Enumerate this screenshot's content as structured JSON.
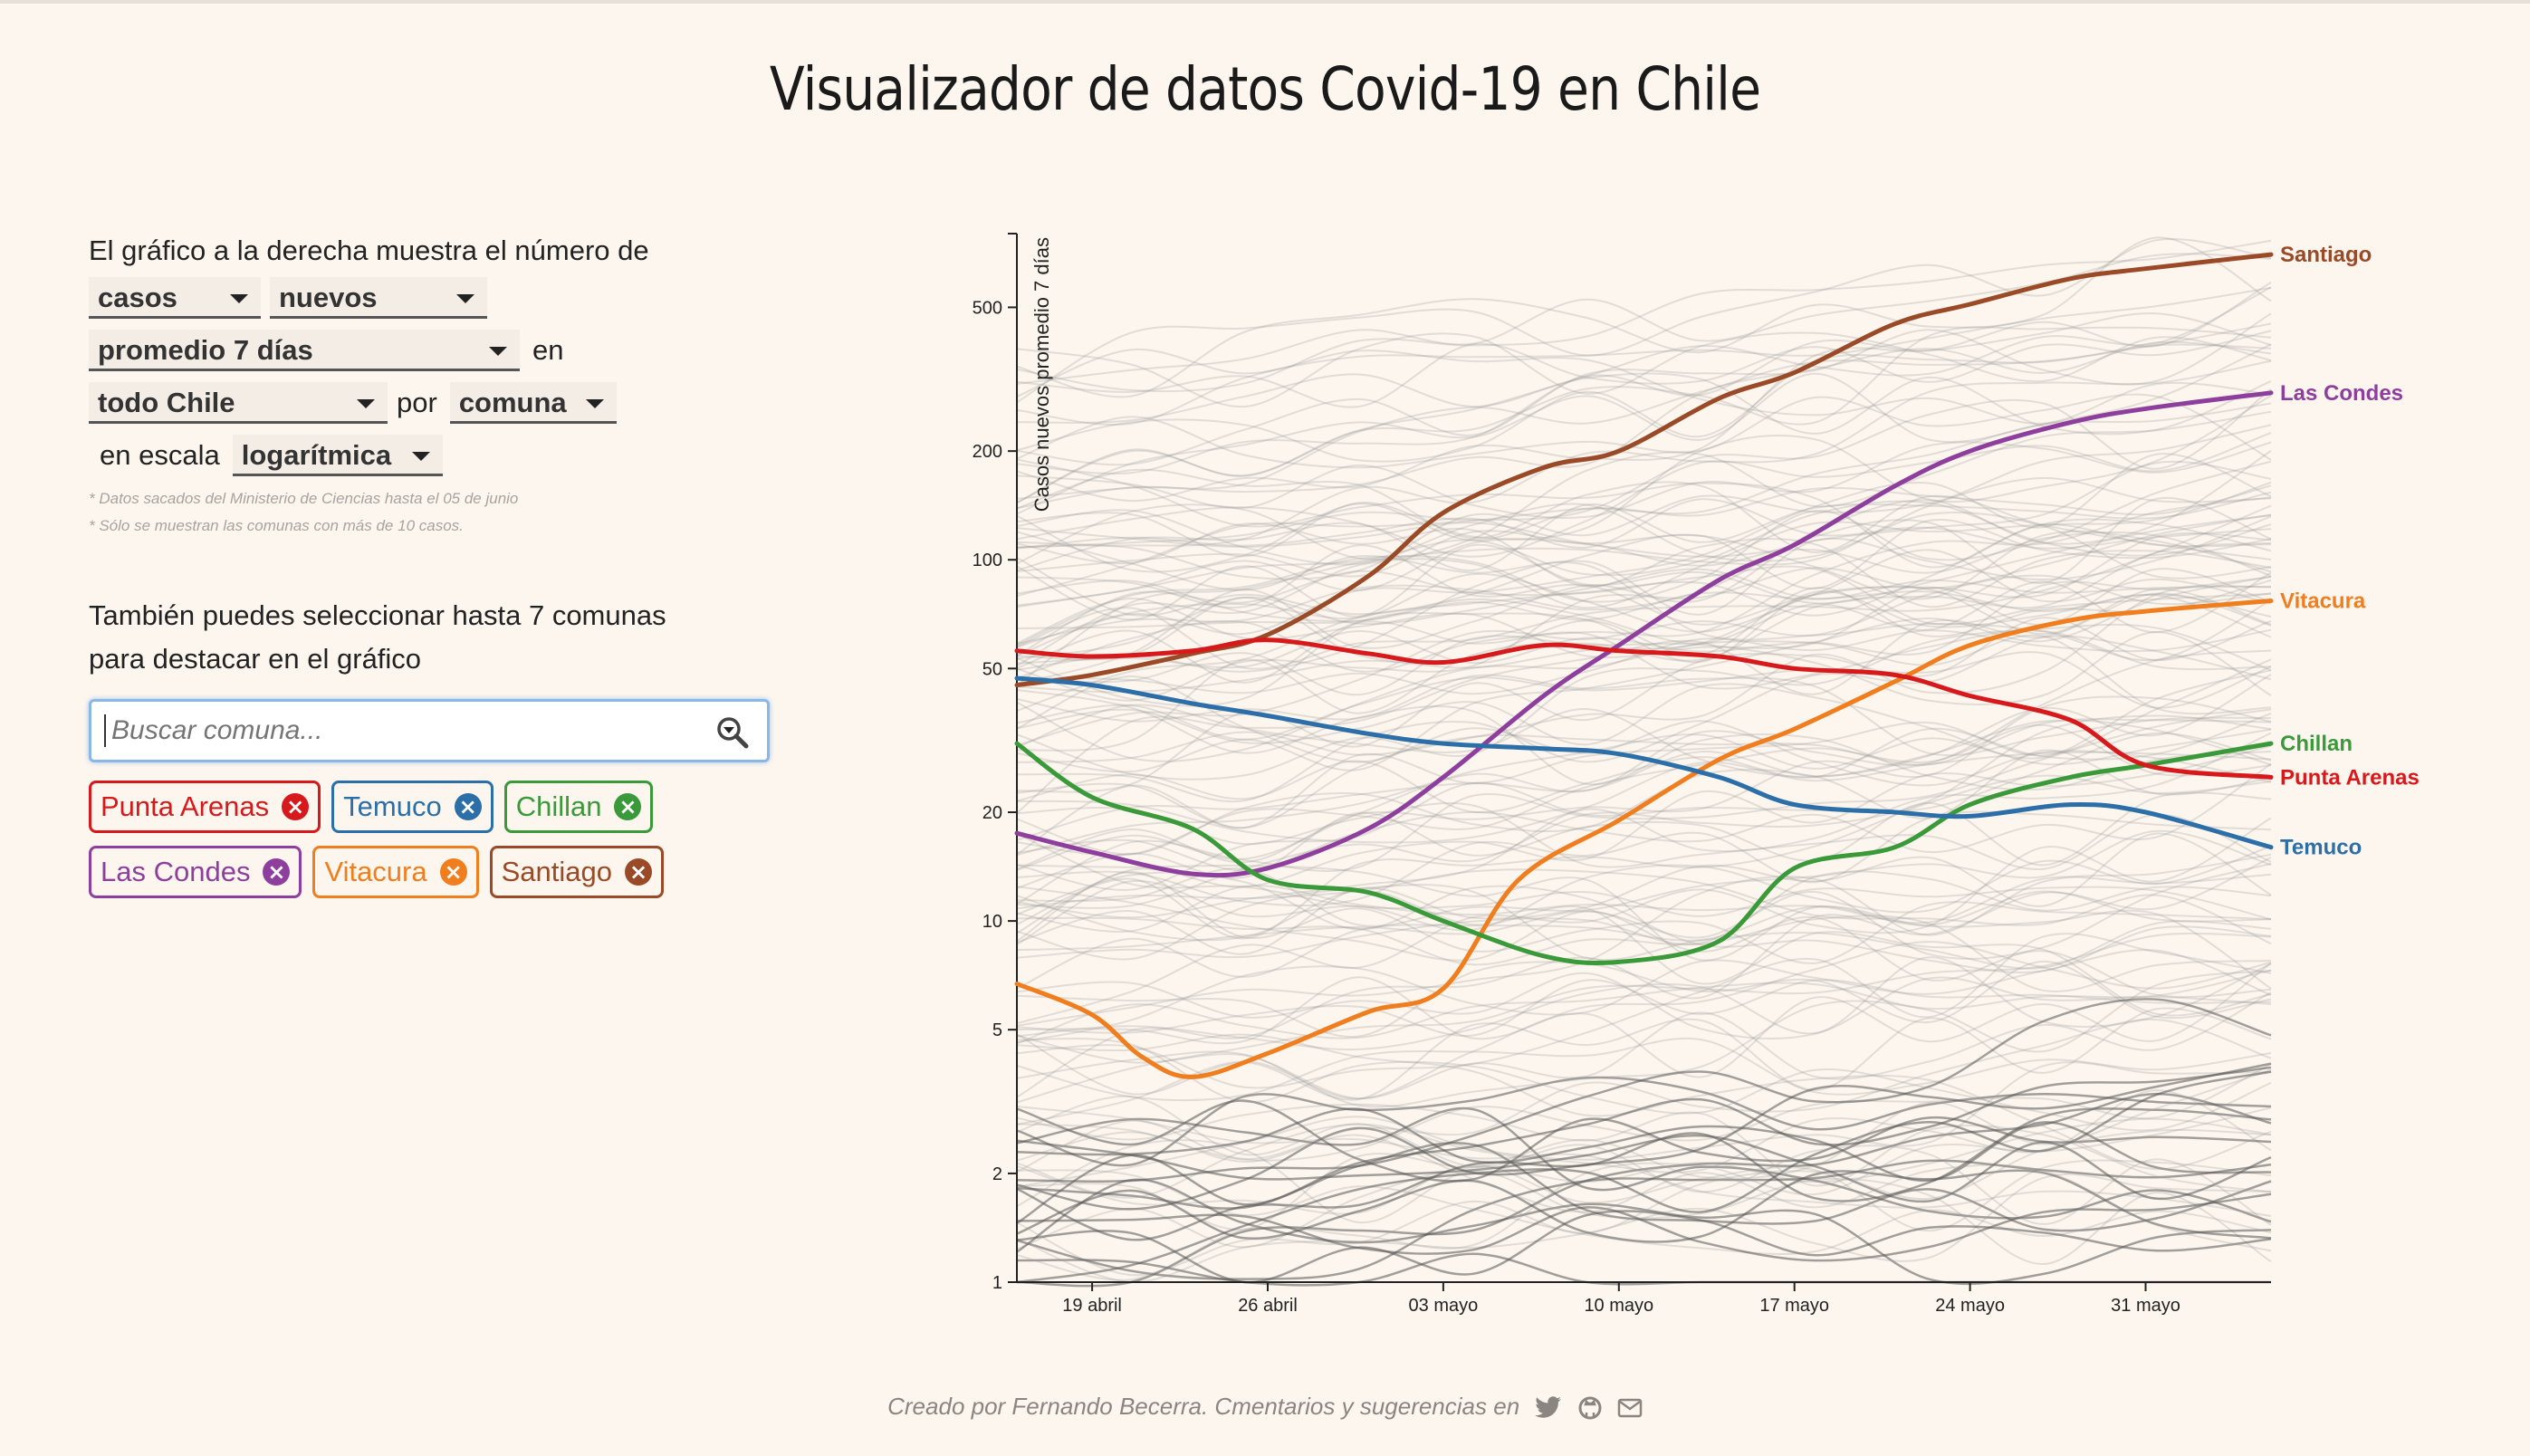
{
  "title": "Visualizador de datos Covid-19 en Chile",
  "controls": {
    "intro": "El gráfico a la derecha muestra el número de",
    "metric": "casos",
    "type": "nuevos",
    "smoothing": "promedio 7 días",
    "word_en": "en",
    "region": "todo Chile",
    "word_por": "por",
    "grouping": "comuna",
    "word_escala": "en escala",
    "scale": "logarítmica"
  },
  "notes": [
    "* Datos sacados del Ministerio de Ciencias hasta el 05 de junio",
    "* Sólo se muestran las comunas con más de 10 casos."
  ],
  "select_prompt_1": "También puedes seleccionar hasta 7 comunas",
  "select_prompt_2": "para destacar en el gráfico",
  "search": {
    "placeholder": "Buscar comuna..."
  },
  "chips": [
    {
      "label": "Punta Arenas",
      "color": "#d7191c"
    },
    {
      "label": "Temuco",
      "color": "#2c6fa8"
    },
    {
      "label": "Chillan",
      "color": "#3a9a3a"
    },
    {
      "label": "Las Condes",
      "color": "#8e3f9e"
    },
    {
      "label": "Vitacura",
      "color": "#f07e1e"
    },
    {
      "label": "Santiago",
      "color": "#9a4a26"
    }
  ],
  "footer": "Creado por Fernando Becerra. Cmentarios y sugerencias en",
  "chart_data": {
    "type": "line",
    "ylabel": "Casos nuevos promedio 7 días",
    "yscale": "log",
    "ylim": [
      1,
      800
    ],
    "yticks": [
      1,
      2,
      5,
      10,
      20,
      50,
      100,
      200,
      500
    ],
    "xlim": [
      "2020-04-16",
      "2020-06-05"
    ],
    "xticks": [
      {
        "date": "2020-04-19",
        "label": "19 abril"
      },
      {
        "date": "2020-04-26",
        "label": "26 abril"
      },
      {
        "date": "2020-05-03",
        "label": "03 mayo"
      },
      {
        "date": "2020-05-10",
        "label": "10 mayo"
      },
      {
        "date": "2020-05-17",
        "label": "17 mayo"
      },
      {
        "date": "2020-05-24",
        "label": "24 mayo"
      },
      {
        "date": "2020-05-31",
        "label": "31 mayo"
      }
    ],
    "background_lines": "many light grey lines, one per other comuna",
    "series": [
      {
        "name": "Santiago",
        "color": "#9a4a26",
        "x": [
          "2020-04-16",
          "2020-04-19",
          "2020-04-23",
          "2020-04-26",
          "2020-04-30",
          "2020-05-03",
          "2020-05-07",
          "2020-05-10",
          "2020-05-14",
          "2020-05-17",
          "2020-05-21",
          "2020-05-24",
          "2020-05-28",
          "2020-05-31",
          "2020-06-05"
        ],
        "y": [
          45,
          48,
          55,
          62,
          90,
          135,
          180,
          200,
          280,
          330,
          450,
          510,
          600,
          640,
          700
        ]
      },
      {
        "name": "Las Condes",
        "color": "#8e3f9e",
        "x": [
          "2020-04-16",
          "2020-04-19",
          "2020-04-23",
          "2020-04-26",
          "2020-04-30",
          "2020-05-03",
          "2020-05-07",
          "2020-05-10",
          "2020-05-14",
          "2020-05-17",
          "2020-05-21",
          "2020-05-24",
          "2020-05-28",
          "2020-05-31",
          "2020-06-05"
        ],
        "y": [
          17.5,
          15.5,
          13.5,
          14,
          18,
          25,
          42,
          58,
          88,
          110,
          160,
          200,
          240,
          262,
          290
        ]
      },
      {
        "name": "Vitacura",
        "color": "#f07e1e",
        "x": [
          "2020-04-16",
          "2020-04-19",
          "2020-04-21",
          "2020-04-23",
          "2020-04-26",
          "2020-04-30",
          "2020-05-03",
          "2020-05-06",
          "2020-05-10",
          "2020-05-14",
          "2020-05-17",
          "2020-05-21",
          "2020-05-24",
          "2020-05-28",
          "2020-05-31",
          "2020-06-05"
        ],
        "y": [
          6.7,
          5.5,
          4.2,
          3.7,
          4.3,
          5.6,
          6.5,
          13,
          19,
          28,
          34,
          46,
          58,
          68,
          72,
          77
        ]
      },
      {
        "name": "Chillan",
        "color": "#3a9a3a",
        "x": [
          "2020-04-16",
          "2020-04-19",
          "2020-04-23",
          "2020-04-26",
          "2020-04-30",
          "2020-05-03",
          "2020-05-07",
          "2020-05-10",
          "2020-05-14",
          "2020-05-17",
          "2020-05-21",
          "2020-05-24",
          "2020-05-28",
          "2020-05-31",
          "2020-06-05"
        ],
        "y": [
          31,
          22,
          18,
          13,
          12,
          10,
          8,
          7.7,
          8.8,
          14,
          16,
          21,
          25,
          27,
          31
        ]
      },
      {
        "name": "Punta Arenas",
        "color": "#d7191c",
        "x": [
          "2020-04-16",
          "2020-04-19",
          "2020-04-23",
          "2020-04-26",
          "2020-04-30",
          "2020-05-03",
          "2020-05-07",
          "2020-05-10",
          "2020-05-14",
          "2020-05-17",
          "2020-05-21",
          "2020-05-24",
          "2020-05-28",
          "2020-05-31",
          "2020-06-05"
        ],
        "y": [
          56,
          54,
          56,
          60,
          55,
          52,
          58,
          56,
          54,
          50,
          48,
          42,
          36,
          27,
          25
        ]
      },
      {
        "name": "Temuco",
        "color": "#2c6fa8",
        "x": [
          "2020-04-16",
          "2020-04-19",
          "2020-04-23",
          "2020-04-26",
          "2020-04-30",
          "2020-05-03",
          "2020-05-07",
          "2020-05-10",
          "2020-05-14",
          "2020-05-17",
          "2020-05-21",
          "2020-05-24",
          "2020-05-28",
          "2020-05-31",
          "2020-06-05"
        ],
        "y": [
          47,
          45,
          40,
          37,
          33,
          31,
          30,
          29,
          25,
          21,
          20,
          19.5,
          21,
          20,
          16
        ]
      }
    ]
  }
}
